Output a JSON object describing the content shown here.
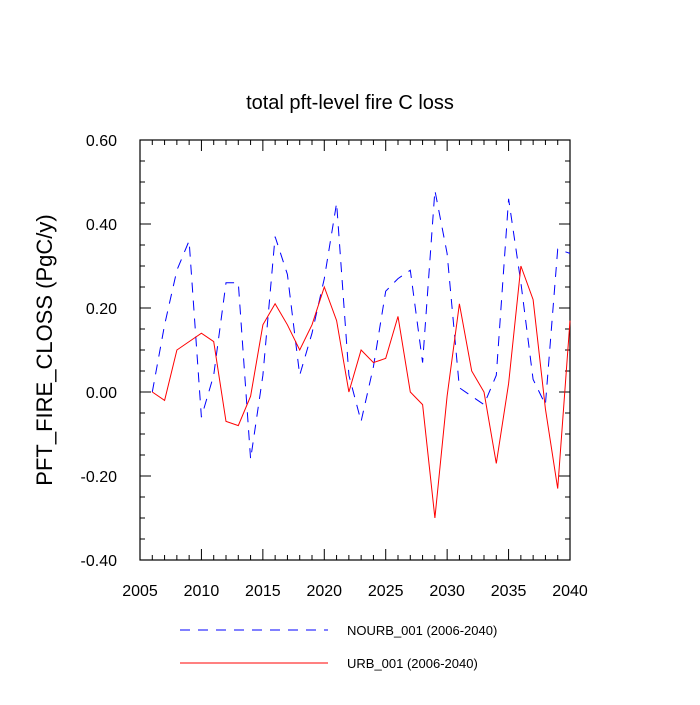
{
  "chart_data": {
    "type": "line",
    "title": "total pft-level fire C loss",
    "ylabel": "PFT_FIRE_CLOSS  (PgC/y)",
    "xlabel": "",
    "xlim": [
      2005,
      2040
    ],
    "ylim": [
      -0.4,
      0.6
    ],
    "x_ticks": [
      2005,
      2010,
      2015,
      2020,
      2025,
      2030,
      2035,
      2040
    ],
    "x_tick_labels": [
      "2005",
      "2010",
      "2015",
      "2020",
      "2025",
      "2030",
      "2035",
      "2040"
    ],
    "y_ticks": [
      -0.4,
      -0.2,
      0.0,
      0.2,
      0.4,
      0.6
    ],
    "y_tick_labels": [
      "-0.40",
      "-0.20",
      "0.00",
      "0.20",
      "0.40",
      "0.60"
    ],
    "x": [
      2006,
      2007,
      2008,
      2009,
      2010,
      2011,
      2012,
      2013,
      2014,
      2015,
      2016,
      2017,
      2018,
      2019,
      2020,
      2021,
      2022,
      2023,
      2024,
      2025,
      2026,
      2027,
      2028,
      2029,
      2030,
      2031,
      2032,
      2033,
      2034,
      2035,
      2036,
      2037,
      2038,
      2039,
      2040
    ],
    "series": [
      {
        "name": "NOURB_001 (2006-2040)",
        "color": "#0000ff",
        "dash": "dashed",
        "values": [
          0.0,
          0.16,
          0.29,
          0.36,
          -0.06,
          0.04,
          0.26,
          0.26,
          -0.16,
          0.04,
          0.37,
          0.28,
          0.04,
          0.14,
          0.27,
          0.45,
          0.04,
          -0.07,
          0.06,
          0.24,
          0.27,
          0.29,
          0.07,
          0.48,
          0.33,
          0.01,
          -0.01,
          -0.03,
          0.04,
          0.46,
          0.26,
          0.03,
          -0.03,
          0.34,
          0.33
        ]
      },
      {
        "name": "URB_001 (2006-2040)",
        "color": "#ff0000",
        "dash": "solid",
        "values": [
          0.0,
          -0.02,
          0.1,
          0.12,
          0.14,
          0.12,
          -0.07,
          -0.08,
          -0.01,
          0.16,
          0.21,
          0.16,
          0.1,
          0.16,
          0.25,
          0.17,
          0.0,
          0.1,
          0.07,
          0.08,
          0.18,
          0.0,
          -0.03,
          -0.3,
          -0.01,
          0.21,
          0.05,
          0.0,
          -0.17,
          0.02,
          0.3,
          0.22,
          -0.04,
          -0.23,
          0.17
        ]
      }
    ],
    "legend_position": "bottom"
  }
}
